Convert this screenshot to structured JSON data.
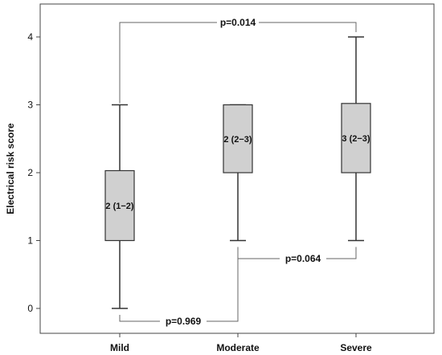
{
  "chart_data": {
    "type": "box",
    "ylabel": "Electrical risk score",
    "xlabel": "",
    "ylim": [
      -0.3,
      4.45
    ],
    "yticks": [
      0,
      1,
      2,
      3,
      4
    ],
    "categories": [
      "Mild",
      "Moderate",
      "Severe"
    ],
    "boxes": [
      {
        "category": "Mild",
        "min": 0,
        "q1": 1,
        "median": 2,
        "q3": 2.03,
        "max": 3,
        "label": "2 (1−2)"
      },
      {
        "category": "Moderate",
        "min": 1,
        "q1": 2,
        "median": 2,
        "q3": 3,
        "max": 3,
        "label": "2 (2−3)"
      },
      {
        "category": "Severe",
        "min": 1,
        "q1": 2,
        "median": 3,
        "q3": 3.02,
        "max": 4,
        "label": "3 (2−3)"
      }
    ],
    "comparisons": [
      {
        "groups": [
          "Mild",
          "Severe"
        ],
        "label": "p=0.014"
      },
      {
        "groups": [
          "Moderate",
          "Severe"
        ],
        "label": "p=0.064"
      },
      {
        "groups": [
          "Mild",
          "Moderate"
        ],
        "label": "p=0.969"
      }
    ],
    "colors": {
      "box_fill": "#d0d0d0",
      "line": "#333333",
      "bracket": "#666666"
    }
  }
}
